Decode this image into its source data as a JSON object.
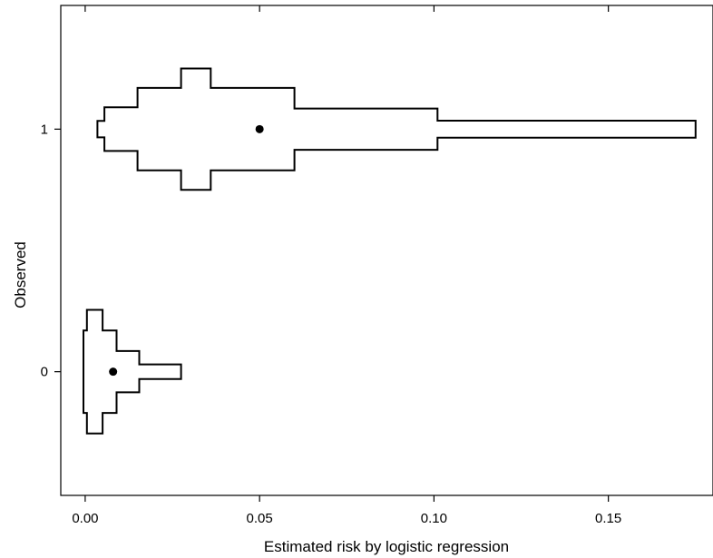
{
  "chart_data": {
    "type": "violin",
    "xlabel": "Estimated risk by logistic regression",
    "ylabel": "Observed",
    "xlim": [
      -0.007,
      0.18
    ],
    "ylim": [
      -0.51,
      1.51
    ],
    "x_ticks": [
      {
        "value": 0.0,
        "label": "0.00"
      },
      {
        "value": 0.05,
        "label": "0.05"
      },
      {
        "value": 0.1,
        "label": "0.10"
      },
      {
        "value": 0.15,
        "label": "0.15"
      }
    ],
    "y_ticks": [
      {
        "value": 0,
        "label": "0"
      },
      {
        "value": 1,
        "label": "1"
      }
    ],
    "grid": false,
    "groups": [
      {
        "observed": 1,
        "mean": 0.05,
        "bins": [
          {
            "x0": 0.0035,
            "x1": 0.0055,
            "half_width": 0.034
          },
          {
            "x0": 0.0055,
            "x1": 0.015,
            "half_width": 0.09
          },
          {
            "x0": 0.015,
            "x1": 0.0275,
            "half_width": 0.17
          },
          {
            "x0": 0.0275,
            "x1": 0.036,
            "half_width": 0.25
          },
          {
            "x0": 0.036,
            "x1": 0.06,
            "half_width": 0.17
          },
          {
            "x0": 0.06,
            "x1": 0.101,
            "half_width": 0.085
          },
          {
            "x0": 0.101,
            "x1": 0.175,
            "half_width": 0.035
          }
        ]
      },
      {
        "observed": 0,
        "mean": 0.008,
        "bins": [
          {
            "x0": -0.0005,
            "x1": 0.0005,
            "half_width": 0.17
          },
          {
            "x0": 0.0005,
            "x1": 0.005,
            "half_width": 0.255
          },
          {
            "x0": 0.005,
            "x1": 0.009,
            "half_width": 0.17
          },
          {
            "x0": 0.009,
            "x1": 0.0155,
            "half_width": 0.085
          },
          {
            "x0": 0.0155,
            "x1": 0.0275,
            "half_width": 0.03
          }
        ]
      }
    ]
  }
}
